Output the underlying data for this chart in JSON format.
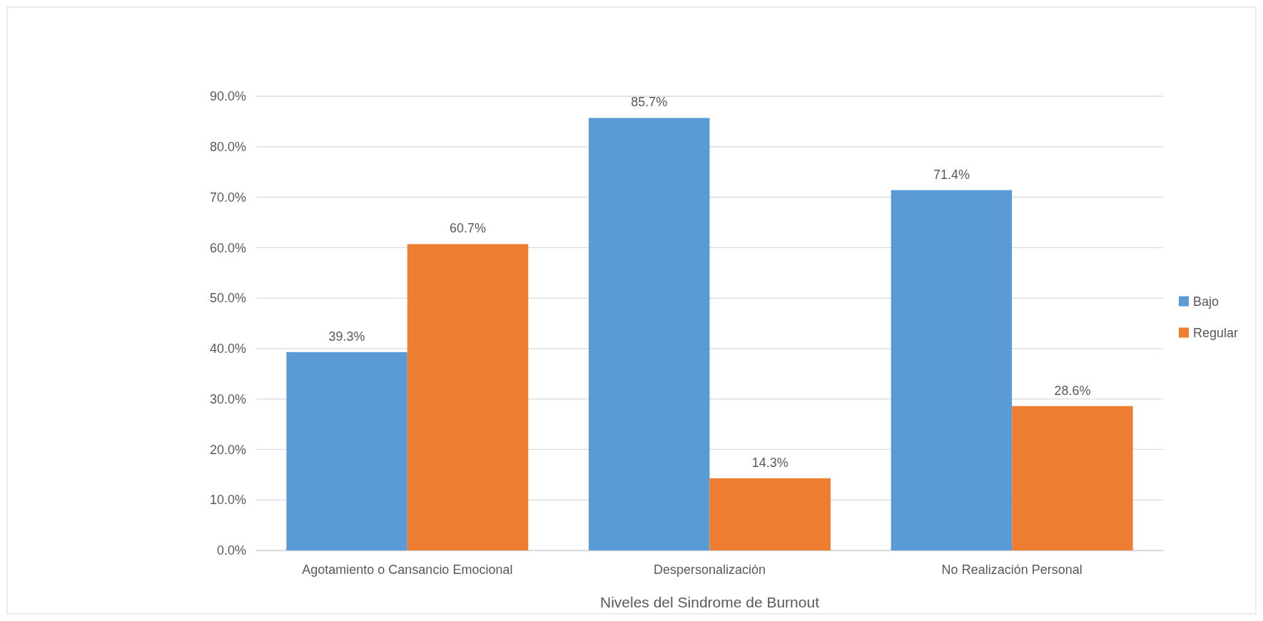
{
  "chart_data": {
    "type": "bar",
    "xlabel": "Niveles del Sindrome de Burnout",
    "categories": [
      "Agotamiento o Cansancio Emocional",
      "Despersonalización",
      "No Realización Personal"
    ],
    "series": [
      {
        "name": "Bajo",
        "color": "#5b9bd5",
        "values": [
          39.3,
          85.7,
          71.4
        ]
      },
      {
        "name": "Regular",
        "color": "#ed7d31",
        "values": [
          60.7,
          14.3,
          28.6
        ]
      }
    ],
    "ylim": [
      0,
      90
    ],
    "yticks": [
      {
        "value": 0,
        "label": "0.0%"
      },
      {
        "value": 10,
        "label": "10.0%"
      },
      {
        "value": 20,
        "label": "20.0%"
      },
      {
        "value": 30,
        "label": "30.0%"
      },
      {
        "value": 40,
        "label": "40.0%"
      },
      {
        "value": 50,
        "label": "50.0%"
      },
      {
        "value": 60,
        "label": "60.0%"
      },
      {
        "value": 70,
        "label": "70.0%"
      },
      {
        "value": 80,
        "label": "80.0%"
      },
      {
        "value": 90,
        "label": "90.0%"
      }
    ],
    "value_labels": [
      [
        "39.3%",
        "85.7%",
        "71.4%"
      ],
      [
        "60.7%",
        "14.3%",
        "28.6%"
      ]
    ],
    "grid": "y",
    "legend": "right"
  }
}
